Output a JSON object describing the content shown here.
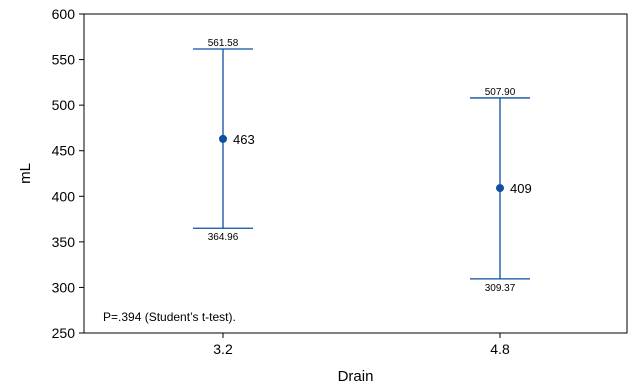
{
  "chart_data": {
    "type": "scatter",
    "title": "",
    "xlabel": "Drain",
    "ylabel": "mL",
    "categories": [
      "3.2",
      "4.8"
    ],
    "ylim": [
      250,
      600
    ],
    "yticks": [
      250,
      300,
      350,
      400,
      450,
      500,
      550,
      600
    ],
    "ytick_labels": [
      "250",
      "300",
      "350",
      "400",
      "450",
      "500",
      "550",
      "600"
    ],
    "grid": false,
    "series": [
      {
        "points": [
          {
            "category": "3.2",
            "mean": 463,
            "mean_label": "463",
            "upper": 561.58,
            "upper_label": "561.58",
            "lower": 364.96,
            "lower_label": "364.96"
          },
          {
            "category": "4.8",
            "mean": 409,
            "mean_label": "409",
            "upper": 507.9,
            "upper_label": "507.90",
            "lower": 309.37,
            "lower_label": "309.37"
          }
        ]
      }
    ],
    "annotation": "P=.394 (Student’s t-test).",
    "colors": {
      "marker": "#0d4fa0",
      "axis": "#000000"
    }
  }
}
